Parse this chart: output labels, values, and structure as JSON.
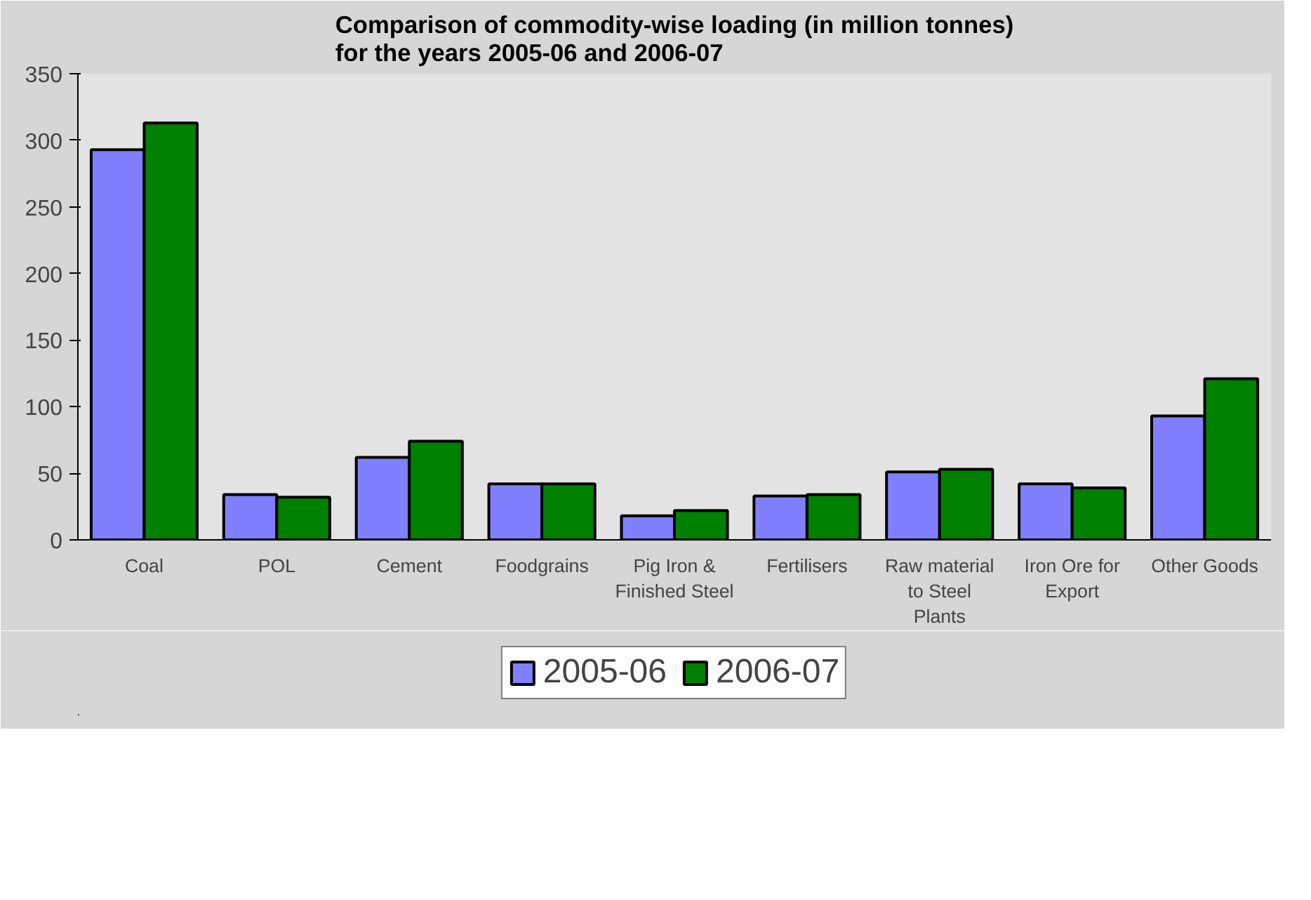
{
  "chart_data": {
    "type": "bar",
    "title": "Comparison of commodity-wise loading (in million tonnes)\nfor the years 2005-06 and 2006-07",
    "categories": [
      "Coal",
      "POL",
      "Cement",
      "Foodgrains",
      "Pig Iron & Finished Steel",
      "Fertilisers",
      "Raw material to Steel Plants",
      "Iron Ore for Export",
      "Other Goods"
    ],
    "series": [
      {
        "name": "2005-06",
        "color": "#8080ff",
        "values": [
          293,
          34,
          62,
          42,
          18,
          33,
          51,
          42,
          93
        ]
      },
      {
        "name": "2006-07",
        "color": "#008000",
        "values": [
          313,
          32,
          74,
          42,
          22,
          34,
          53,
          39,
          121
        ]
      }
    ],
    "ylim": [
      0,
      350
    ],
    "yticks": [
      0,
      50,
      100,
      150,
      200,
      250,
      300,
      350
    ],
    "grid": false,
    "legend": "bottom"
  }
}
